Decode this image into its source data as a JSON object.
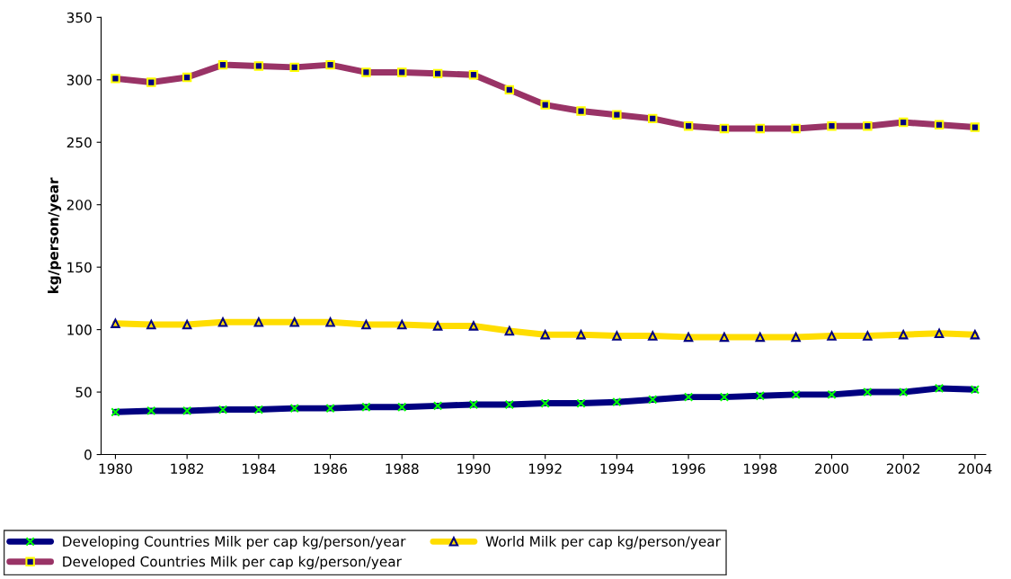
{
  "chart_data": {
    "type": "line",
    "ylabel": "kg/person/year",
    "x": [
      1980,
      1981,
      1982,
      1983,
      1984,
      1985,
      1986,
      1987,
      1988,
      1989,
      1990,
      1991,
      1992,
      1993,
      1994,
      1995,
      1996,
      1997,
      1998,
      1999,
      2000,
      2001,
      2002,
      2003,
      2004
    ],
    "series": [
      {
        "name": "Developing Countries Milk per cap kg/person/year",
        "color": "#000080",
        "marker": "cross",
        "values": [
          34,
          35,
          35,
          36,
          36,
          37,
          37,
          38,
          38,
          39,
          40,
          40,
          41,
          41,
          42,
          44,
          46,
          46,
          47,
          48,
          48,
          50,
          50,
          53,
          52
        ]
      },
      {
        "name": "Developed Countries Milk per cap kg/person/year",
        "color": "#993366",
        "marker": "square",
        "values": [
          301,
          298,
          302,
          312,
          311,
          310,
          312,
          306,
          306,
          305,
          304,
          292,
          280,
          275,
          272,
          269,
          263,
          261,
          261,
          261,
          263,
          263,
          266,
          264,
          262
        ]
      },
      {
        "name": "World Milk per cap kg/person/year",
        "color": "#ffdd00",
        "marker": "triangle",
        "values": [
          105,
          104,
          104,
          106,
          106,
          106,
          106,
          104,
          104,
          103,
          103,
          99,
          96,
          96,
          95,
          95,
          94,
          94,
          94,
          94,
          95,
          95,
          96,
          97,
          96
        ]
      }
    ],
    "xlim": [
      1979.6,
      2004.3
    ],
    "xticks": [
      1980,
      1982,
      1984,
      1986,
      1988,
      1990,
      1992,
      1994,
      1996,
      1998,
      2000,
      2002,
      2004
    ],
    "ylim": [
      0,
      350
    ],
    "yticks": [
      0,
      50,
      100,
      150,
      200,
      250,
      300,
      350
    ],
    "grid": false,
    "legend": "bottom",
    "line_style": "solid"
  }
}
